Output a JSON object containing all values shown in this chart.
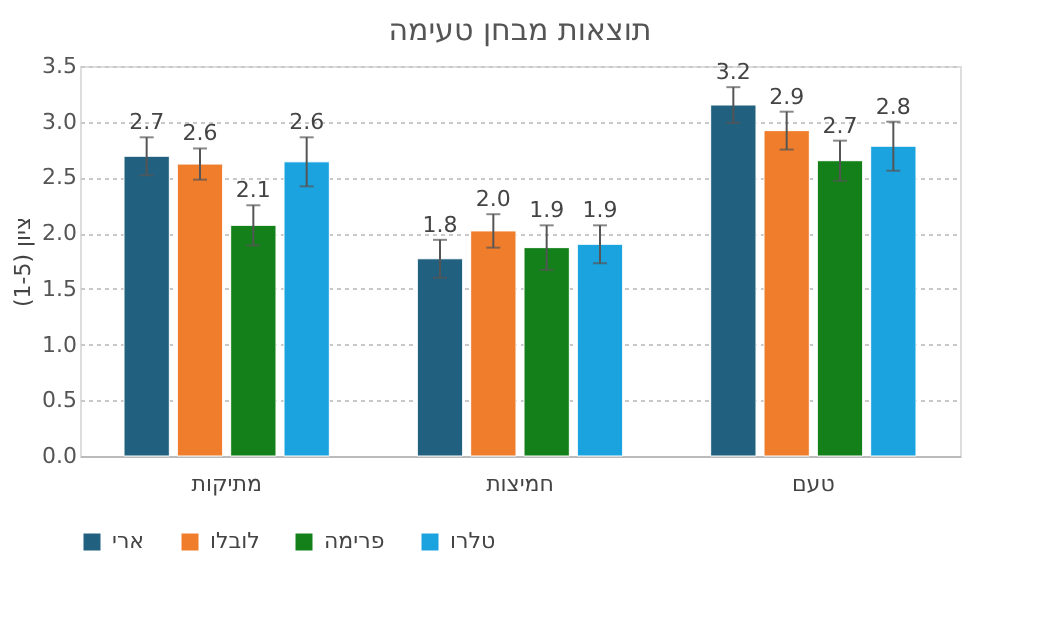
{
  "chart_data": {
    "type": "bar",
    "title": "תוצאות מבחן טעימה",
    "ylabel": "ציון (1-5)",
    "categories": [
      "מתיקות",
      "חמיצות",
      "טעם"
    ],
    "series": [
      {
        "name": "ארי",
        "color": "#22607f",
        "values": [
          2.69,
          1.77,
          3.15
        ],
        "errors": [
          0.17,
          0.17,
          0.16
        ],
        "value_labels": [
          "2.7",
          "1.8",
          "3.2"
        ]
      },
      {
        "name": "לובלו",
        "color": "#f07d2c",
        "values": [
          2.62,
          2.02,
          2.92
        ],
        "errors": [
          0.14,
          0.15,
          0.17
        ],
        "value_labels": [
          "2.6",
          "2.0",
          "2.9"
        ]
      },
      {
        "name": "פרימה",
        "color": "#138019",
        "values": [
          2.07,
          1.87,
          2.65
        ],
        "errors": [
          0.18,
          0.2,
          0.18
        ],
        "value_labels": [
          "2.1",
          "1.9",
          "2.7"
        ]
      },
      {
        "name": "טלרו",
        "color": "#1aa3de",
        "values": [
          2.64,
          1.9,
          2.78
        ],
        "errors": [
          0.22,
          0.17,
          0.22
        ],
        "value_labels": [
          "2.6",
          "1.9",
          "2.8"
        ]
      }
    ],
    "ylim": [
      0,
      3.5
    ],
    "yticks": [
      {
        "value": 0,
        "label": "0.0"
      },
      {
        "value": 0.5,
        "label": "0.5"
      },
      {
        "value": 1,
        "label": "1.0"
      },
      {
        "value": 1.5,
        "label": "1.5"
      },
      {
        "value": 2,
        "label": "2.0"
      },
      {
        "value": 2.5,
        "label": "2.5"
      },
      {
        "value": 3,
        "label": "3.0"
      },
      {
        "value": 3.5,
        "label": "3.5"
      }
    ],
    "grid": "y",
    "legend": "bottom"
  }
}
